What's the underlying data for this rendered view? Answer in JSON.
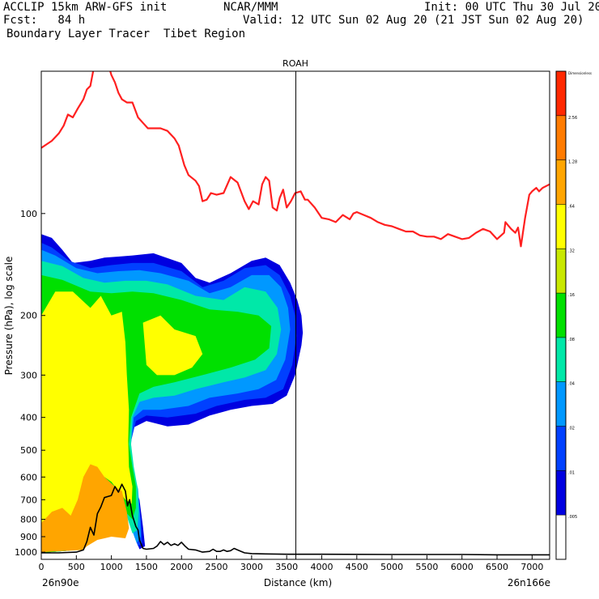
{
  "header": {
    "line1_left": "ACCLIP 15km ARW-GFS init",
    "line1_center": "NCAR/MMM",
    "line1_right": "Init: 00 UTC Thu 30 Jul 20",
    "line2_left": "Fcst:   84 h",
    "line2_right": "Valid: 12 UTC Sun 02 Aug 20 (21 JST Sun 02 Aug 20)",
    "line3_left": "Boundary Layer Tracer  Tibet Region"
  },
  "chart_data": {
    "type": "contour",
    "title": "ROAH",
    "xlabel": "Distance (km)",
    "ylabel": "Pressure (hPa), log scale",
    "x_range": [
      0,
      7250
    ],
    "y_range_hPa": [
      1050,
      38
    ],
    "y_scale": "log",
    "x_ticks": [
      0,
      500,
      1000,
      1500,
      2000,
      2500,
      3000,
      3500,
      4000,
      4500,
      5000,
      5500,
      6000,
      6500,
      7000
    ],
    "y_ticks": [
      100,
      200,
      300,
      400,
      500,
      600,
      700,
      800,
      900,
      1000
    ],
    "endpoint_left": "26n90e",
    "endpoint_right": "26n166e",
    "marker_line_x": 3630,
    "colorbar": {
      "levels": [
        "Dimensionless",
        "2.56",
        "1.28",
        ".64",
        ".32",
        ".16",
        ".08",
        ".04",
        ".02",
        ".01",
        ".005"
      ],
      "colors": [
        "#ff2800",
        "#ff7b00",
        "#ffa500",
        "#ffff00",
        "#c8e800",
        "#00e000",
        "#00e8a8",
        "#0098ff",
        "#0040ff",
        "#0000e0",
        "#ffffff"
      ]
    },
    "tropopause_line": {
      "color": "#ff2020",
      "x": [
        0,
        150,
        250,
        320,
        380,
        450,
        520,
        600,
        650,
        700,
        750,
        780,
        800,
        850,
        900,
        950,
        1000,
        1050,
        1100,
        1150,
        1220,
        1300,
        1380,
        1450,
        1520,
        1600,
        1700,
        1800,
        1900,
        1960,
        2040,
        2100,
        2200,
        2250,
        2300,
        2360,
        2420,
        2500,
        2600,
        2700,
        2800,
        2900,
        2960,
        3020,
        3100,
        3150,
        3200,
        3250,
        3300,
        3360,
        3400,
        3450,
        3500,
        3560,
        3620,
        3700,
        3760,
        3800,
        3900,
        4000,
        4100,
        4200,
        4300,
        4400,
        4450,
        4500,
        4600,
        4700,
        4800,
        4900,
        5000,
        5100,
        5200,
        5300,
        5400,
        5500,
        5600,
        5700,
        5800,
        5900,
        6000,
        6100,
        6200,
        6300,
        6400,
        6500,
        6600,
        6620,
        6700,
        6760,
        6800,
        6840,
        6900,
        6960,
        7000,
        7060,
        7100,
        7150,
        7250
      ],
      "pressure_hPa": [
        64,
        61,
        58,
        55,
        51,
        52,
        49,
        46,
        43,
        42,
        37,
        30,
        25,
        32,
        31,
        36,
        39,
        41,
        44,
        46,
        47,
        47,
        52,
        54,
        56,
        56,
        56,
        57,
        60,
        63,
        72,
        77,
        80,
        83,
        92,
        91,
        87,
        88,
        87,
        78,
        81,
        92,
        97,
        92,
        94,
        82,
        78,
        80,
        96,
        98,
        90,
        85,
        96,
        92,
        87,
        86,
        91,
        91,
        96,
        103,
        104,
        106,
        101,
        104,
        100,
        99,
        101,
        103,
        106,
        108,
        109,
        111,
        113,
        113,
        116,
        117,
        117,
        119,
        115,
        117,
        119,
        118,
        114,
        111,
        113,
        119,
        114,
        106,
        111,
        114,
        110,
        125,
        103,
        88,
        86,
        84,
        86,
        84,
        82
      ]
    },
    "terrain_line": {
      "color": "#000000",
      "x": [
        0,
        250,
        500,
        600,
        650,
        700,
        750,
        800,
        850,
        900,
        950,
        1000,
        1050,
        1100,
        1150,
        1200,
        1230,
        1260,
        1300,
        1350,
        1380,
        1400,
        1450,
        1500,
        1600,
        1650,
        1700,
        1750,
        1800,
        1850,
        1900,
        1950,
        2000,
        2050,
        2100,
        2200,
        2300,
        2400,
        2450,
        2500,
        2550,
        2600,
        2650,
        2700,
        2750,
        2800,
        2850,
        2900,
        3000,
        3200,
        3500,
        4000,
        5000,
        5500,
        6000,
        6500,
        7000,
        7250
      ],
      "pressure_hPa": [
        1005,
        1005,
        1000,
        985,
        930,
        845,
        890,
        770,
        735,
        690,
        685,
        680,
        640,
        665,
        630,
        660,
        730,
        700,
        780,
        840,
        860,
        920,
        975,
        980,
        975,
        960,
        930,
        950,
        935,
        955,
        945,
        955,
        935,
        960,
        980,
        985,
        1000,
        995,
        980,
        995,
        995,
        985,
        995,
        990,
        975,
        985,
        995,
        1005,
        1010,
        1012,
        1014,
        1014,
        1016,
        1016,
        1016,
        1018,
        1018,
        1018
      ]
    },
    "contour_regions_note": "Filled tracer plume extends from 0 to ~3750 km between ~110 and 1000 hPa; shaded by the colorbar levels."
  }
}
